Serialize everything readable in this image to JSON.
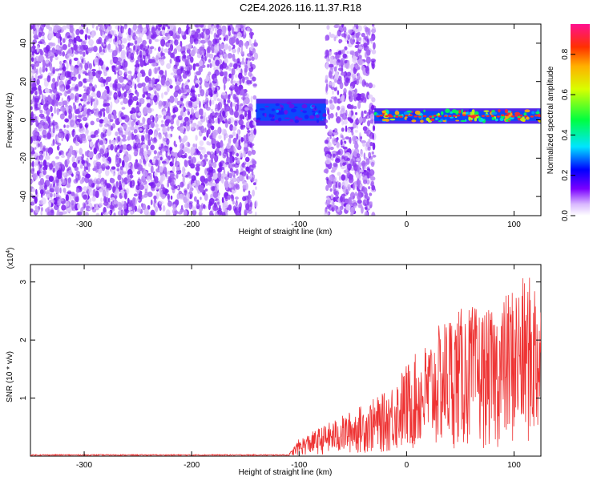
{
  "title": "C2E4.2026.116.11.37.R18",
  "chart_data": [
    {
      "type": "heatmap",
      "xlabel": "Height of straight line (km)",
      "ylabel": "Frequency (Hz)",
      "xlim": [
        -350,
        125
      ],
      "ylim": [
        -50,
        50
      ],
      "x_ticks": [
        -300,
        -200,
        -100,
        0,
        100
      ],
      "y_ticks": [
        -40,
        -20,
        0,
        20,
        40
      ],
      "colorbar": {
        "label": "Normalized spectral amplitude",
        "range": [
          0,
          0.95
        ],
        "ticks": [
          "0.0",
          "0.2",
          "0.4",
          "0.6",
          "0.8"
        ]
      },
      "regions": [
        {
          "x": [
            -350,
            -140
          ],
          "y": [
            -50,
            50
          ],
          "pattern": "scattered noise",
          "amplitude": 0.05
        },
        {
          "x": [
            -140,
            -75
          ],
          "y": [
            -3,
            11
          ],
          "pattern": "band",
          "amplitude": 0.25
        },
        {
          "x": [
            -75,
            -30
          ],
          "y": [
            -50,
            50
          ],
          "pattern": "scattered noise",
          "amplitude": 0.05
        },
        {
          "x": [
            -30,
            125
          ],
          "y": [
            -2,
            6
          ],
          "pattern": "band",
          "amplitude": 0.85
        }
      ]
    },
    {
      "type": "line",
      "xlabel": "Height of straight line (km)",
      "ylabel": "SNR (10 * v/v)",
      "y_scale_label": "(x10",
      "y_scale_exp": "4",
      "y_scale_close": ")",
      "xlim": [
        -350,
        125
      ],
      "ylim": [
        0,
        3.3
      ],
      "x_ticks": [
        -300,
        -200,
        -100,
        0,
        100
      ],
      "y_ticks": [
        1,
        2,
        3
      ],
      "line_color": "#ee3333",
      "envelope": {
        "x": [
          -350,
          -110,
          -100,
          -60,
          -40,
          -20,
          -10,
          0,
          20,
          40,
          60,
          80,
          100,
          125
        ],
        "y": [
          0.02,
          0.02,
          0.3,
          0.7,
          0.9,
          1.1,
          1.35,
          1.6,
          2.0,
          2.5,
          2.6,
          2.5,
          3.0,
          3.2
        ]
      }
    }
  ]
}
